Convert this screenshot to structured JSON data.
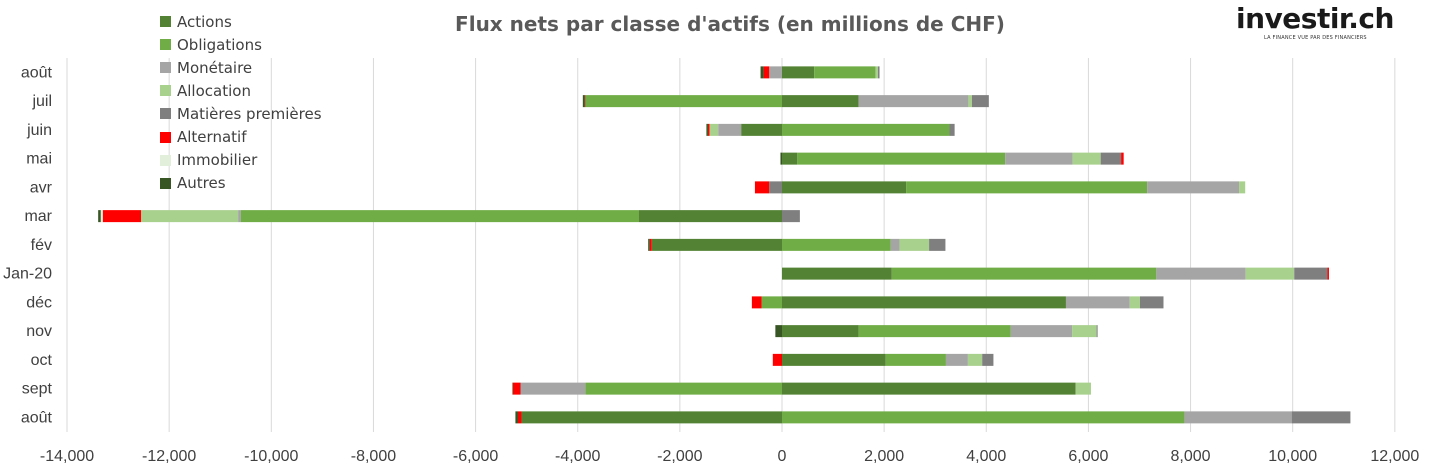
{
  "chart_data": {
    "type": "bar",
    "orientation": "horizontal",
    "stacked": true,
    "title": "Flux nets par classe d'actifs (en millions de CHF)",
    "categories": [
      "août",
      "sept",
      "oct",
      "nov",
      "déc",
      "Jan-20",
      "fév",
      "mar",
      "avr",
      "mai",
      "juin",
      "juil",
      "août"
    ],
    "xlim": [
      -14000,
      12000
    ],
    "xticks": [
      -14000,
      -12000,
      -10000,
      -8000,
      -6000,
      -4000,
      -2000,
      0,
      2000,
      4000,
      6000,
      8000,
      10000,
      12000
    ],
    "xtick_labels": [
      "-14,000",
      "-12,000",
      "-10,000",
      "-8,000",
      "-6,000",
      "-4,000",
      "-2,000",
      "0",
      "2,000",
      "4,000",
      "6,000",
      "8,000",
      "10,000",
      "12,000"
    ],
    "grid": true,
    "legend_position": "top-left",
    "series": [
      {
        "name": "Actions",
        "color": "#548235",
        "values": [
          -5100,
          5750,
          2030,
          1500,
          5560,
          2150,
          -2550,
          -2800,
          2430,
          300,
          -800,
          1500,
          630
        ]
      },
      {
        "name": "Obligations",
        "color": "#70AD47",
        "values": [
          7880,
          -3850,
          1180,
          2980,
          -400,
          5180,
          2130,
          -7800,
          4720,
          4070,
          3280,
          -3850,
          1200
        ]
      },
      {
        "name": "Monétaire",
        "color": "#A5A5A5",
        "values": [
          2100,
          -1270,
          430,
          1200,
          1250,
          1750,
          170,
          -50,
          1800,
          1320,
          -450,
          2150,
          -250
        ]
      },
      {
        "name": "Allocation",
        "color": "#A9D18E",
        "values": [
          0,
          300,
          280,
          480,
          200,
          950,
          580,
          -1900,
          120,
          550,
          -170,
          70,
          50
        ]
      },
      {
        "name": "Matières premières",
        "color": "#7F7F7F",
        "values": [
          1150,
          0,
          220,
          20,
          460,
          650,
          320,
          350,
          -250,
          400,
          100,
          330,
          30
        ]
      },
      {
        "name": "Alternatif",
        "color": "#FF0000",
        "values": [
          -70,
          -150,
          -180,
          0,
          -190,
          30,
          -40,
          -750,
          -280,
          50,
          -30,
          -10,
          -110
        ]
      },
      {
        "name": "Immobilier",
        "color": "#E2EFDA",
        "values": [
          0,
          0,
          0,
          0,
          0,
          0,
          0,
          -40,
          0,
          0,
          0,
          0,
          0
        ]
      },
      {
        "name": "Autres",
        "color": "#375623",
        "values": [
          -50,
          -10,
          0,
          -130,
          0,
          0,
          -30,
          -50,
          0,
          -30,
          -30,
          -40,
          -60
        ]
      }
    ]
  },
  "logo": {
    "text": "investir.ch",
    "tagline": "LA FINANCE VUE PAR DES FINANCIERS"
  }
}
